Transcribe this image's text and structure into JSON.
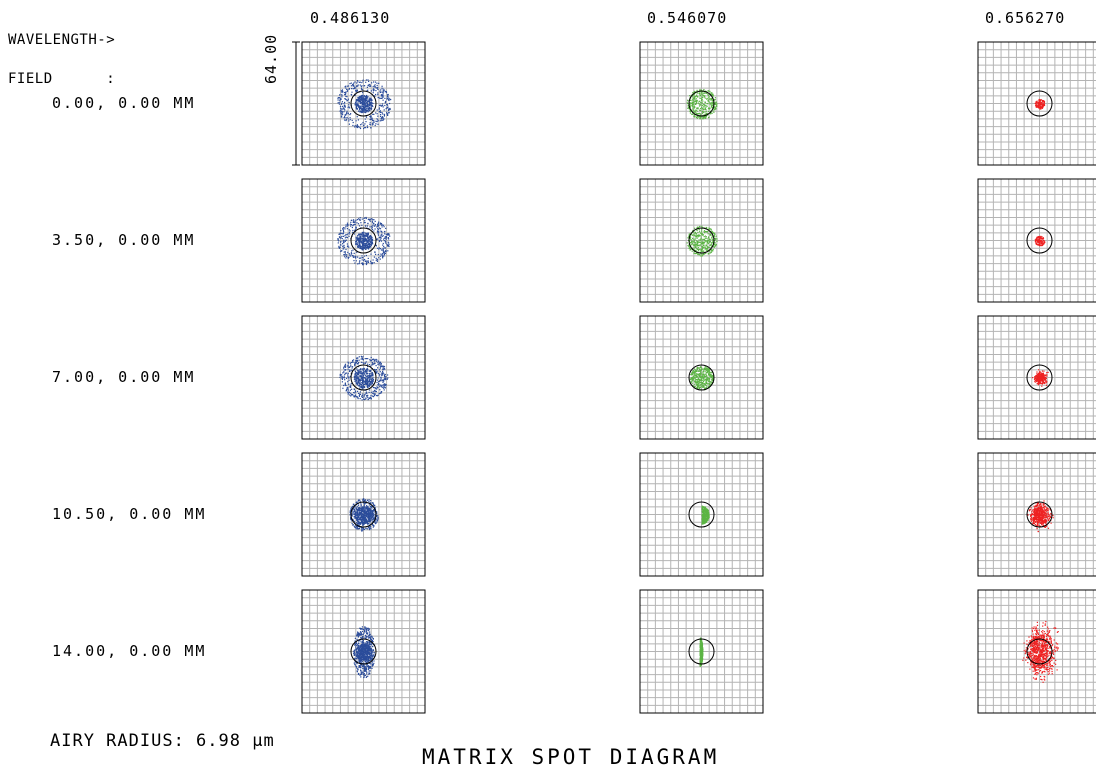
{
  "header": {
    "line1": "WAVELENGTH->",
    "line2": "FIELD      :"
  },
  "wavelengths": [
    "0.486130",
    "0.546070",
    "0.656270"
  ],
  "fields": [
    "0.00, 0.00 MM",
    "3.50, 0.00 MM",
    "7.00, 0.00 MM",
    "10.50, 0.00 MM",
    "14.00, 0.00 MM"
  ],
  "scale_label": "64.00",
  "airy_radius": "AIRY RADIUS: 6.98 µm",
  "title": "MATRIX SPOT DIAGRAM",
  "colors": {
    "blue": "#2b4c9b",
    "green": "#5cb545",
    "red": "#ee2222",
    "grid": "#b4b4b4"
  },
  "icons": {
    "spot": "spot-diagram-icon",
    "airy": "airy-disk-circle-icon"
  }
}
